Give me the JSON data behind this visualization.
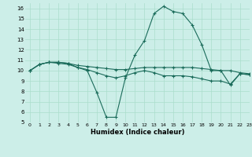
{
  "title": "",
  "xlabel": "Humidex (Indice chaleur)",
  "ylabel": "",
  "bg_color": "#cceee8",
  "grid_color": "#aaddcc",
  "line_color": "#1a6b5a",
  "xlim": [
    -0.5,
    23
  ],
  "ylim": [
    5,
    16.5
  ],
  "xticks": [
    0,
    1,
    2,
    3,
    4,
    5,
    6,
    7,
    8,
    9,
    10,
    11,
    12,
    13,
    14,
    15,
    16,
    17,
    18,
    19,
    20,
    21,
    22,
    23
  ],
  "yticks": [
    5,
    6,
    7,
    8,
    9,
    10,
    11,
    12,
    13,
    14,
    15,
    16
  ],
  "line1_x": [
    0,
    1,
    2,
    3,
    4,
    5,
    6,
    7,
    8,
    9,
    10,
    11,
    12,
    13,
    14,
    15,
    16,
    17,
    18,
    19,
    20,
    21,
    22,
    23
  ],
  "line1_y": [
    10.0,
    10.6,
    10.8,
    10.8,
    10.7,
    10.5,
    10.4,
    10.3,
    10.2,
    10.1,
    10.1,
    10.2,
    10.3,
    10.3,
    10.3,
    10.3,
    10.3,
    10.3,
    10.2,
    10.1,
    10.0,
    10.0,
    9.8,
    9.7
  ],
  "line2_x": [
    0,
    1,
    2,
    3,
    4,
    5,
    6,
    7,
    8,
    9,
    10,
    11,
    12,
    13,
    14,
    15,
    16,
    17,
    18,
    19,
    20,
    21,
    22,
    23
  ],
  "line2_y": [
    10.0,
    10.6,
    10.8,
    10.8,
    10.7,
    10.3,
    10.0,
    7.9,
    5.5,
    5.5,
    9.3,
    11.5,
    12.9,
    15.5,
    16.2,
    15.7,
    15.5,
    14.4,
    12.5,
    10.0,
    10.0,
    8.6,
    9.7,
    9.6
  ],
  "line3_x": [
    0,
    1,
    2,
    3,
    4,
    5,
    6,
    7,
    8,
    9,
    10,
    11,
    12,
    13,
    14,
    15,
    16,
    17,
    18,
    19,
    20,
    21,
    22,
    23
  ],
  "line3_y": [
    10.0,
    10.6,
    10.8,
    10.7,
    10.6,
    10.3,
    10.1,
    9.8,
    9.5,
    9.3,
    9.5,
    9.8,
    10.0,
    9.8,
    9.5,
    9.5,
    9.5,
    9.4,
    9.2,
    9.0,
    9.0,
    8.7,
    9.7,
    9.6
  ]
}
